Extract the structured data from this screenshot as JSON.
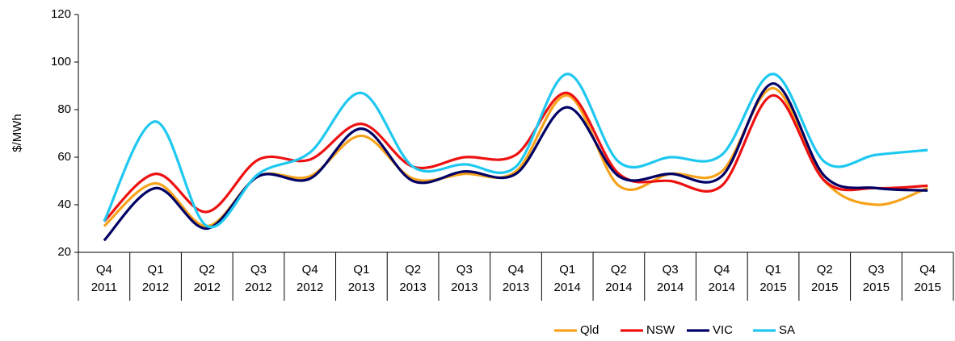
{
  "chart_data": {
    "type": "line",
    "y_label": "$/MWh",
    "categories": [
      [
        "Q4",
        "2011"
      ],
      [
        "Q1",
        "2012"
      ],
      [
        "Q2",
        "2012"
      ],
      [
        "Q3",
        "2012"
      ],
      [
        "Q4",
        "2012"
      ],
      [
        "Q1",
        "2013"
      ],
      [
        "Q2",
        "2013"
      ],
      [
        "Q3",
        "2013"
      ],
      [
        "Q4",
        "2013"
      ],
      [
        "Q1",
        "2014"
      ],
      [
        "Q2",
        "2014"
      ],
      [
        "Q3",
        "2014"
      ],
      [
        "Q4",
        "2014"
      ],
      [
        "Q1",
        "2015"
      ],
      [
        "Q2",
        "2015"
      ],
      [
        "Q3",
        "2015"
      ],
      [
        "Q4",
        "2015"
      ]
    ],
    "series": [
      {
        "name": "Qld",
        "color": "#f7a21b",
        "values": [
          31,
          49,
          31,
          52,
          52,
          69,
          51,
          53,
          54,
          86,
          48,
          53,
          54,
          89,
          50,
          40,
          47
        ]
      },
      {
        "name": "NSW",
        "color": "#ee1111",
        "values": [
          33,
          53,
          37,
          59,
          59,
          74,
          56,
          60,
          61,
          87,
          53,
          50,
          48,
          86,
          50,
          47,
          48
        ]
      },
      {
        "name": "VIC",
        "color": "#000066",
        "values": [
          25,
          47,
          30,
          52,
          51,
          72,
          50,
          54,
          53,
          81,
          52,
          53,
          52,
          91,
          52,
          47,
          46
        ]
      },
      {
        "name": "SA",
        "color": "#1ec8f0",
        "values": [
          33,
          75,
          31,
          53,
          62,
          87,
          56,
          57,
          56,
          95,
          58,
          60,
          61,
          95,
          58,
          61,
          63
        ]
      }
    ],
    "ylim": [
      20,
      120
    ],
    "yticks": [
      20,
      40,
      60,
      80,
      100,
      120
    ],
    "legend": "bottom"
  }
}
